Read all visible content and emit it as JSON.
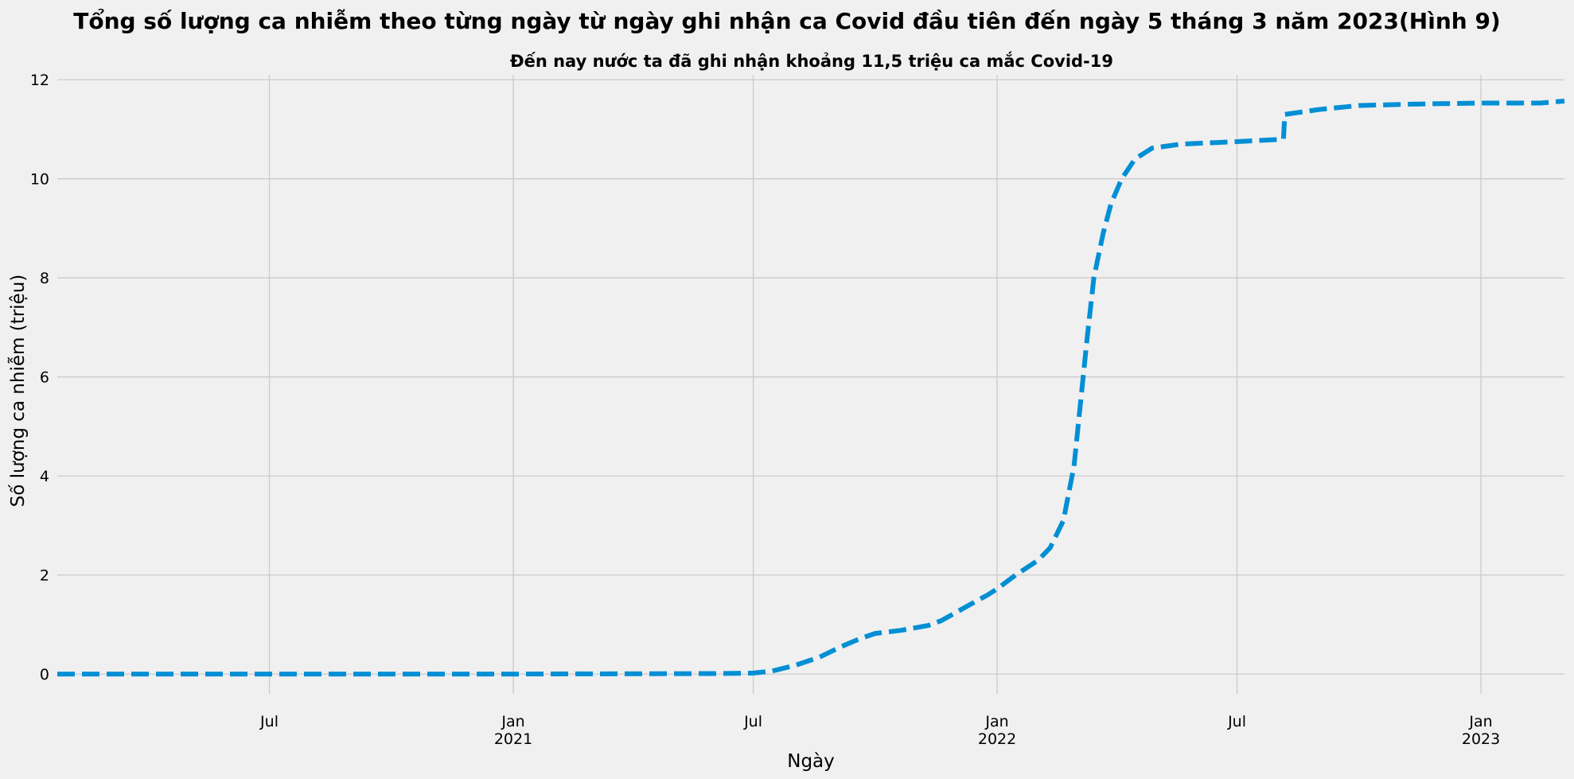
{
  "chart_data": {
    "type": "line",
    "title": "Tổng số lượng ca nhiễm theo từng ngày từ ngày ghi nhận ca Covid đầu tiên đến ngày 5 tháng 3 năm 2023(Hình 9)",
    "subtitle": "Đến nay nước ta đã ghi nhận khoảng 11,5 triệu ca mắc Covid-19",
    "xlabel": "Ngày",
    "ylabel": "Số lượng ca nhiễm (triệu)",
    "xlim": [
      "2020-01-23",
      "2023-03-05"
    ],
    "ylim": [
      -0.4,
      12.1
    ],
    "yticks": [
      0,
      2,
      4,
      6,
      8,
      10,
      12
    ],
    "xticks": [
      {
        "date": "2020-07-01",
        "label": "Jul",
        "sublabel": ""
      },
      {
        "date": "2021-01-01",
        "label": "Jan",
        "sublabel": "2021"
      },
      {
        "date": "2021-07-01",
        "label": "Jul",
        "sublabel": ""
      },
      {
        "date": "2022-01-01",
        "label": "Jan",
        "sublabel": "2022"
      },
      {
        "date": "2022-07-01",
        "label": "Jul",
        "sublabel": ""
      },
      {
        "date": "2023-01-01",
        "label": "Jan",
        "sublabel": "2023"
      }
    ],
    "grid": true,
    "line_color": "#008fd5",
    "line_style": "dashed",
    "series": [
      {
        "name": "",
        "points": [
          {
            "x": "2020-01-23",
            "y": 0.0
          },
          {
            "x": "2021-01-01",
            "y": 0.0
          },
          {
            "x": "2021-06-01",
            "y": 0.01
          },
          {
            "x": "2021-07-01",
            "y": 0.02
          },
          {
            "x": "2021-07-15",
            "y": 0.06
          },
          {
            "x": "2021-08-01",
            "y": 0.17
          },
          {
            "x": "2021-08-20",
            "y": 0.34
          },
          {
            "x": "2021-09-05",
            "y": 0.55
          },
          {
            "x": "2021-09-20",
            "y": 0.72
          },
          {
            "x": "2021-10-01",
            "y": 0.82
          },
          {
            "x": "2021-10-20",
            "y": 0.88
          },
          {
            "x": "2021-11-10",
            "y": 0.98
          },
          {
            "x": "2021-11-20",
            "y": 1.08
          },
          {
            "x": "2021-12-10",
            "y": 1.38
          },
          {
            "x": "2021-12-25",
            "y": 1.6
          },
          {
            "x": "2022-01-01",
            "y": 1.72
          },
          {
            "x": "2022-01-15",
            "y": 2.0
          },
          {
            "x": "2022-02-01",
            "y": 2.3
          },
          {
            "x": "2022-02-10",
            "y": 2.55
          },
          {
            "x": "2022-02-20",
            "y": 3.1
          },
          {
            "x": "2022-02-28",
            "y": 4.2
          },
          {
            "x": "2022-03-05",
            "y": 5.5
          },
          {
            "x": "2022-03-10",
            "y": 6.8
          },
          {
            "x": "2022-03-15",
            "y": 8.0
          },
          {
            "x": "2022-03-22",
            "y": 8.9
          },
          {
            "x": "2022-03-28",
            "y": 9.5
          },
          {
            "x": "2022-04-05",
            "y": 10.0
          },
          {
            "x": "2022-04-15",
            "y": 10.4
          },
          {
            "x": "2022-04-28",
            "y": 10.62
          },
          {
            "x": "2022-05-20",
            "y": 10.7
          },
          {
            "x": "2022-07-01",
            "y": 10.75
          },
          {
            "x": "2022-08-05",
            "y": 10.8
          },
          {
            "x": "2022-08-06",
            "y": 11.3
          },
          {
            "x": "2022-09-01",
            "y": 11.4
          },
          {
            "x": "2022-10-01",
            "y": 11.48
          },
          {
            "x": "2022-11-15",
            "y": 11.51
          },
          {
            "x": "2023-01-01",
            "y": 11.53
          },
          {
            "x": "2023-02-15",
            "y": 11.53
          },
          {
            "x": "2023-03-05",
            "y": 11.57
          }
        ]
      }
    ]
  }
}
